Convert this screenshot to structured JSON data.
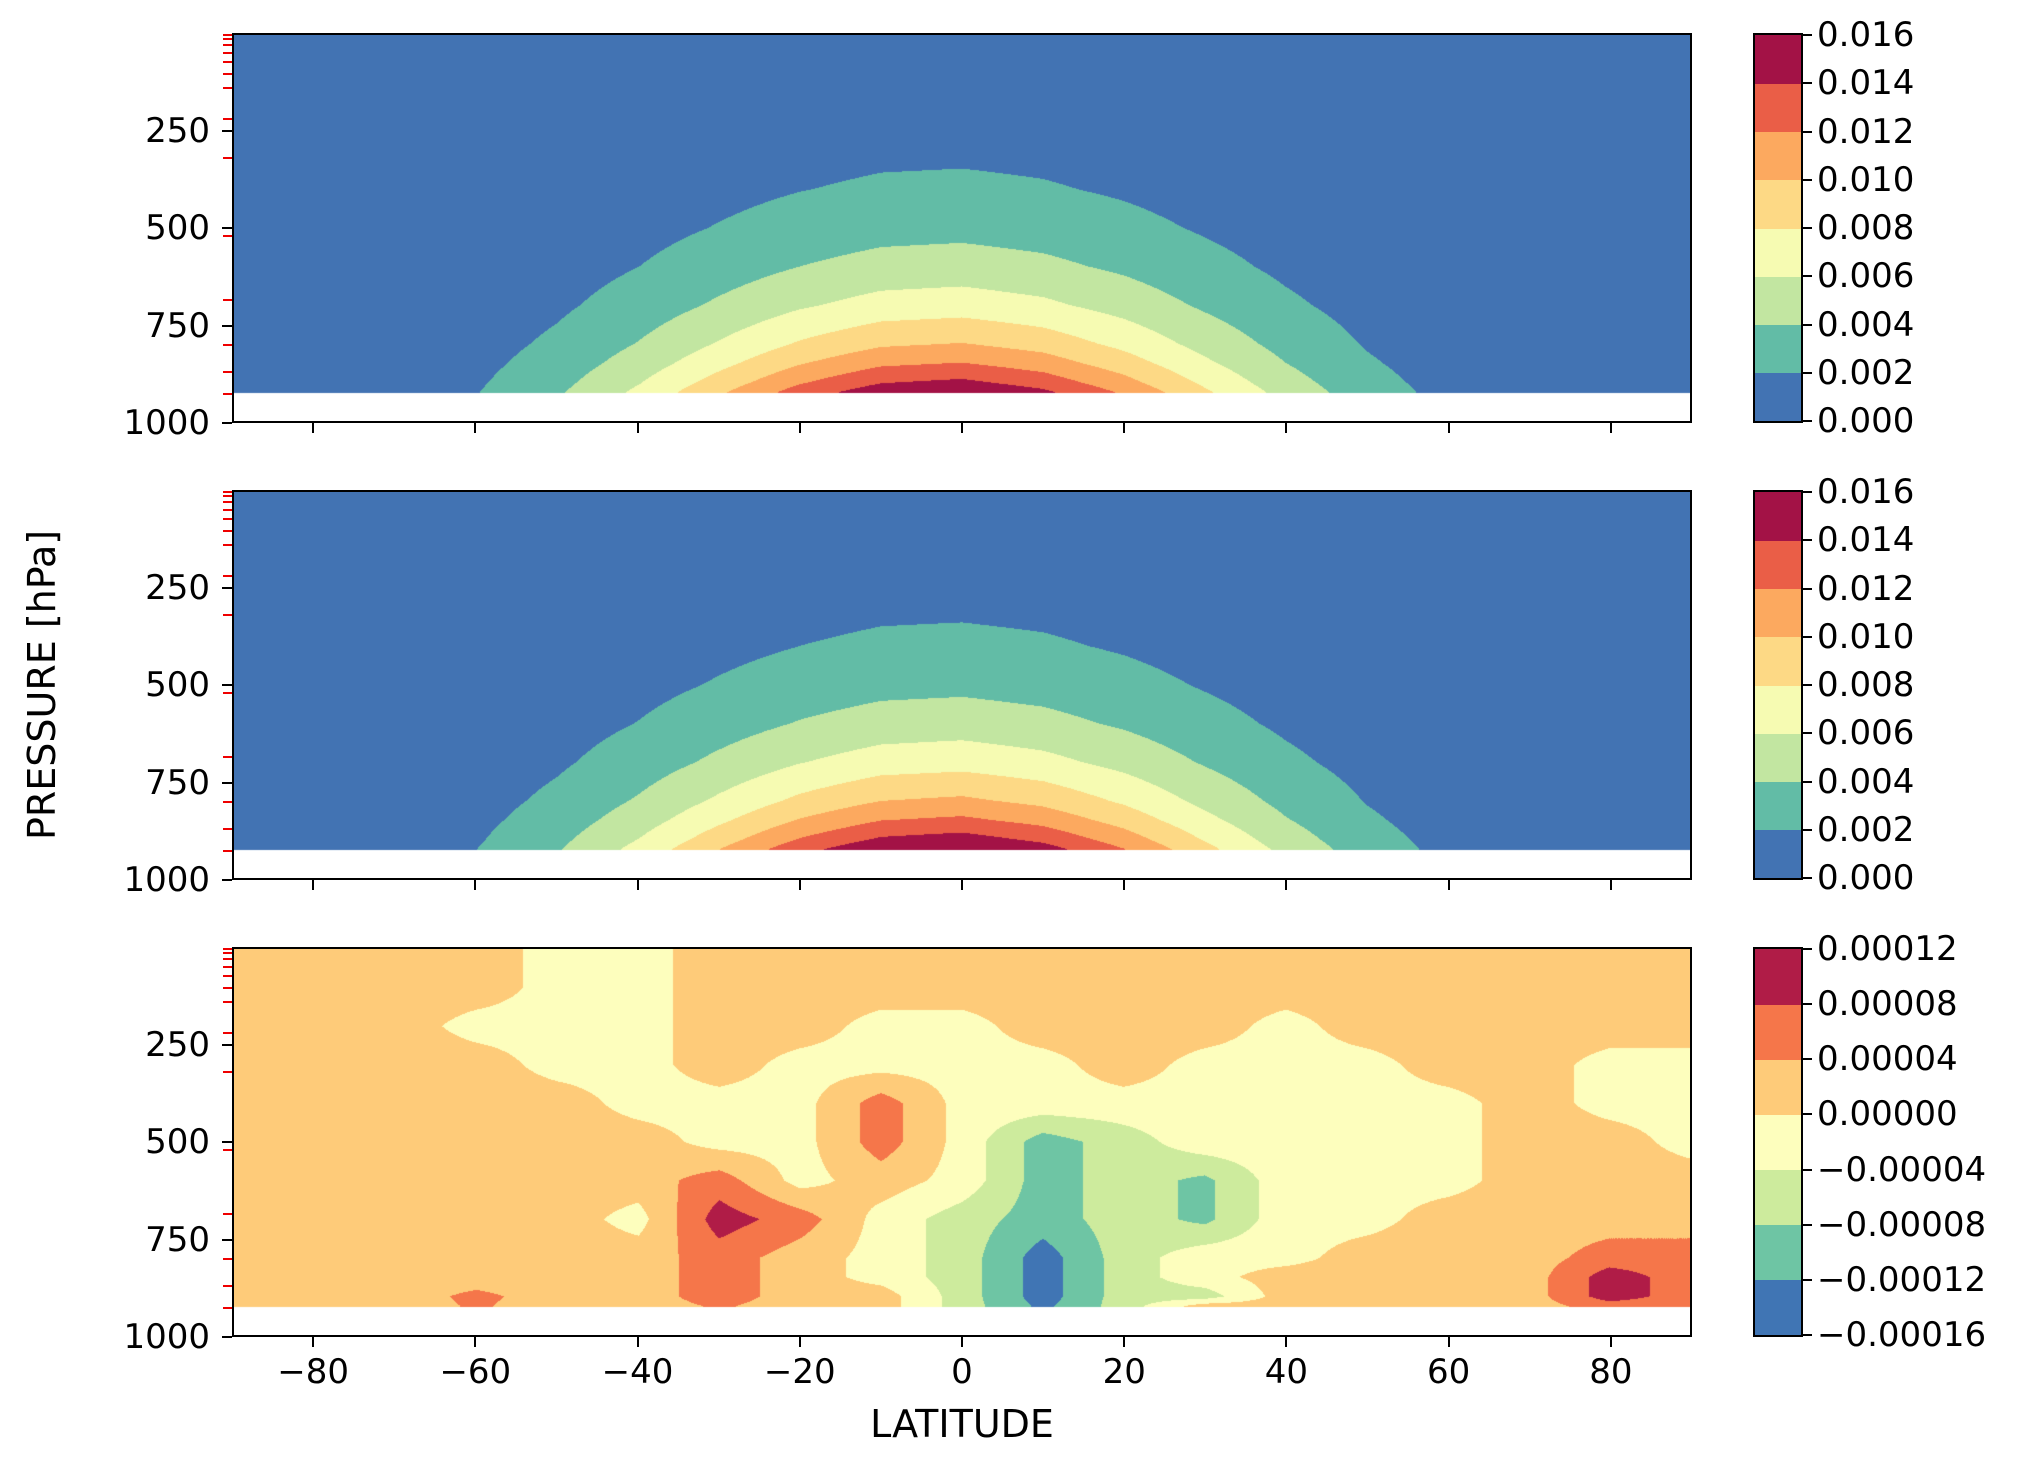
{
  "figure": {
    "ylabel": "PRESSURE [hPa]",
    "xlabel": "LATITUDE",
    "x_tick_labels": [
      "−80",
      "−60",
      "−40",
      "−20",
      "0",
      "20",
      "40",
      "60",
      "80"
    ],
    "x_tick_values": [
      -80,
      -60,
      -40,
      -20,
      0,
      20,
      40,
      60,
      80
    ],
    "y_tick_labels": [
      "250",
      "500",
      "750",
      "1000"
    ],
    "y_tick_values": [
      250,
      500,
      750,
      1000
    ],
    "y_axis_range_hPa": [
      0,
      1000
    ],
    "x_axis_range_deg": [
      -90,
      90
    ],
    "red_minor_tick_pressures": [
      5,
      15,
      30,
      50,
      75,
      105,
      140,
      220,
      320,
      520,
      685,
      800,
      870,
      925
    ],
    "surface_cutoff_hPa": 925
  },
  "chart_data": [
    {
      "type": "heatmap",
      "name": "panel-1-moisture-contour",
      "x_axis": "latitude_deg",
      "y_axis": "pressure_hPa",
      "lats": [
        -90,
        -80,
        -70,
        -60,
        -50,
        -40,
        -30,
        -20,
        -10,
        0,
        10,
        20,
        30,
        40,
        50,
        60,
        70,
        80,
        90
      ],
      "pressures": [
        100,
        200,
        300,
        400,
        500,
        600,
        700,
        800,
        850,
        900,
        925
      ],
      "values": [
        [
          1e-05,
          2e-05,
          5e-05,
          0.0001,
          0.00019,
          0.00033,
          0.0005,
          0.00066,
          0.00078,
          0.00081,
          0.00074,
          0.0006,
          0.00043,
          0.00027,
          0.00015,
          7e-05,
          3e-05,
          1e-05,
          0.0
        ],
        [
          1e-05,
          3e-05,
          6e-05,
          0.00014,
          0.00028,
          0.00047,
          0.00071,
          0.00095,
          0.00112,
          0.00116,
          0.00106,
          0.00086,
          0.00061,
          0.00039,
          0.00022,
          0.00011,
          5e-05,
          2e-05,
          1e-05
        ],
        [
          1e-05,
          4e-05,
          9e-05,
          0.0002,
          0.0004,
          0.00068,
          0.00102,
          0.00136,
          0.00161,
          0.00167,
          0.00152,
          0.00124,
          0.00088,
          0.00056,
          0.00031,
          0.00015,
          7e-05,
          2e-05,
          1e-05
        ],
        [
          2e-05,
          5e-05,
          0.00013,
          0.00029,
          0.00057,
          0.00097,
          0.00147,
          0.00195,
          0.0023,
          0.00239,
          0.00218,
          0.00177,
          0.00126,
          0.00079,
          0.00044,
          0.00022,
          9e-05,
          4e-05,
          1e-05
        ],
        [
          3e-05,
          8e-05,
          0.00019,
          0.00042,
          0.00081,
          0.00139,
          0.0021,
          0.0028,
          0.0033,
          0.00343,
          0.00312,
          0.00254,
          0.00181,
          0.00114,
          0.00063,
          0.00031,
          0.00013,
          5e-05,
          2e-05
        ],
        [
          4e-05,
          0.00011,
          0.00027,
          0.0006,
          0.00116,
          0.00199,
          0.00301,
          0.00401,
          0.00472,
          0.00491,
          0.00447,
          0.00364,
          0.00259,
          0.00163,
          0.00091,
          0.00044,
          0.00019,
          7e-05,
          2e-05
        ],
        [
          6e-05,
          0.00016,
          0.00039,
          0.00086,
          0.00167,
          0.00285,
          0.00431,
          0.00574,
          0.00677,
          0.00703,
          0.00641,
          0.00521,
          0.00371,
          0.00234,
          0.0013,
          0.00064,
          0.00028,
          0.00011,
          4e-05
        ],
        [
          8e-05,
          0.00022,
          0.00056,
          0.00123,
          0.00239,
          0.00409,
          0.00617,
          0.00823,
          0.00969,
          0.01008,
          0.00918,
          0.00746,
          0.00531,
          0.00335,
          0.00186,
          0.00091,
          0.00039,
          0.00015,
          5e-05
        ],
        [
          0.0001,
          0.00027,
          0.00067,
          0.00147,
          0.00286,
          0.00489,
          0.00739,
          0.00985,
          0.01161,
          0.01206,
          0.01099,
          0.00893,
          0.00636,
          0.00401,
          0.00223,
          0.00109,
          0.00047,
          0.00018,
          6e-05
        ],
        [
          0.00011,
          0.00032,
          0.0008,
          0.00176,
          0.00342,
          0.00586,
          0.00885,
          0.01179,
          0.01389,
          0.01444,
          0.01316,
          0.0107,
          0.00761,
          0.0048,
          0.00267,
          0.00131,
          0.00057,
          0.00022,
          7e-05
        ],
        [
          0.00013,
          0.00035,
          0.00088,
          0.00193,
          0.00374,
          0.00641,
          0.00968,
          0.0129,
          0.0152,
          0.0158,
          0.0144,
          0.0117,
          0.00833,
          0.00525,
          0.00292,
          0.00143,
          0.00062,
          0.00024,
          8e-05
        ]
      ],
      "levels": [
        0,
        0.002,
        0.004,
        0.006,
        0.008,
        0.01,
        0.012,
        0.014,
        0.016
      ],
      "band_colors": [
        "#4273b3",
        "#62bca6",
        "#c2e6a1",
        "#f6fbb2",
        "#fdd985",
        "#fca95f",
        "#ea5e47",
        "#a31246"
      ],
      "colorbar_tick_labels": [
        "0.016",
        "0.014",
        "0.012",
        "0.010",
        "0.008",
        "0.006",
        "0.004",
        "0.002",
        "0.000"
      ]
    },
    {
      "type": "heatmap",
      "name": "panel-2-moisture-contour",
      "x_axis": "latitude_deg",
      "y_axis": "pressure_hPa",
      "lats": [
        -90,
        -80,
        -70,
        -60,
        -50,
        -40,
        -30,
        -20,
        -10,
        0,
        10,
        20,
        30,
        40,
        50,
        60,
        70,
        80,
        90
      ],
      "pressures": [
        100,
        200,
        300,
        400,
        500,
        600,
        700,
        800,
        850,
        900,
        925
      ],
      "values": [
        [
          1e-05,
          2e-05,
          5e-05,
          0.0001,
          0.0002,
          0.00034,
          0.00051,
          0.00068,
          0.00081,
          0.00084,
          0.00076,
          0.00062,
          0.00044,
          0.00028,
          0.00015,
          8e-05,
          3e-05,
          1e-05,
          0.0
        ],
        [
          1e-05,
          3e-05,
          7e-05,
          0.00015,
          0.00028,
          0.00049,
          0.00073,
          0.00098,
          0.00115,
          0.0012,
          0.00109,
          0.00089,
          0.00063,
          0.0004,
          0.00022,
          0.00011,
          5e-05,
          2e-05,
          1e-05
        ],
        [
          1e-05,
          4e-05,
          0.0001,
          0.00021,
          0.00041,
          0.0007,
          0.00105,
          0.0014,
          0.00166,
          0.00172,
          0.00157,
          0.00127,
          0.00091,
          0.00057,
          0.00032,
          0.00016,
          7e-05,
          3e-05,
          1e-05
        ],
        [
          2e-05,
          5e-05,
          0.00014,
          0.0003,
          0.00058,
          0.001,
          0.00151,
          0.00201,
          0.00237,
          0.00246,
          0.00225,
          0.00182,
          0.0013,
          0.00082,
          0.00046,
          0.00022,
          0.0001,
          4e-05,
          1e-05
        ],
        [
          3e-05,
          8e-05,
          0.0002,
          0.00043,
          0.00084,
          0.00143,
          0.00216,
          0.00288,
          0.0034,
          0.00353,
          0.00322,
          0.00261,
          0.00186,
          0.00117,
          0.00065,
          0.00032,
          0.00014,
          5e-05,
          2e-05
        ],
        [
          4e-05,
          0.00011,
          0.00028,
          0.00062,
          0.0012,
          0.00205,
          0.0031,
          0.00413,
          0.00486,
          0.00506,
          0.00461,
          0.00374,
          0.00267,
          0.00168,
          0.00093,
          0.00046,
          0.0002,
          8e-05,
          3e-05
        ],
        [
          6e-05,
          0.00016,
          0.0004,
          0.00088,
          0.00172,
          0.00294,
          0.00444,
          0.00592,
          0.00697,
          0.00724,
          0.0066,
          0.00537,
          0.00382,
          0.00241,
          0.00134,
          0.00066,
          0.00028,
          0.00011,
          4e-05
        ],
        [
          8e-05,
          0.00023,
          0.00058,
          0.00127,
          0.00246,
          0.00421,
          0.00636,
          0.00847,
          0.00999,
          0.01038,
          0.00946,
          0.00768,
          0.00547,
          0.00345,
          0.00192,
          0.00094,
          0.00041,
          0.00015,
          5e-05
        ],
        [
          0.0001,
          0.00028,
          0.00069,
          0.00152,
          0.00294,
          0.00504,
          0.00761,
          0.01014,
          0.01195,
          0.01242,
          0.01132,
          0.0092,
          0.00655,
          0.00413,
          0.0023,
          0.00112,
          0.00049,
          0.00019,
          6e-05
        ],
        [
          0.00012,
          0.00033,
          0.00083,
          0.00181,
          0.00352,
          0.00603,
          0.00911,
          0.01215,
          0.01431,
          0.01488,
          0.01356,
          0.01102,
          0.00784,
          0.00494,
          0.00275,
          0.00135,
          0.00058,
          0.00022,
          8e-05
        ],
        [
          0.00013,
          0.00036,
          0.00091,
          0.00199,
          0.00385,
          0.0066,
          0.00997,
          0.01329,
          0.01566,
          0.01627,
          0.01483,
          0.01205,
          0.00858,
          0.00541,
          0.00301,
          0.00147,
          0.00064,
          0.00025,
          8e-05
        ]
      ],
      "levels": [
        0,
        0.002,
        0.004,
        0.006,
        0.008,
        0.01,
        0.012,
        0.014,
        0.016
      ],
      "band_colors": [
        "#4273b3",
        "#62bca6",
        "#c2e6a1",
        "#f6fbb2",
        "#fdd985",
        "#fca95f",
        "#ea5e47",
        "#a31246"
      ],
      "colorbar_tick_labels": [
        "0.016",
        "0.014",
        "0.012",
        "0.010",
        "0.008",
        "0.006",
        "0.004",
        "0.002",
        "0.000"
      ]
    },
    {
      "type": "heatmap",
      "name": "panel-3-difference-contour",
      "x_axis": "latitude_deg",
      "y_axis": "pressure_hPa",
      "lats": [
        -90,
        -80,
        -70,
        -60,
        -50,
        -40,
        -30,
        -20,
        -10,
        0,
        10,
        20,
        30,
        40,
        50,
        60,
        70,
        80,
        90
      ],
      "pressures": [
        100,
        200,
        300,
        400,
        500,
        600,
        700,
        800,
        850,
        900,
        925
      ],
      "values": [
        [
          2e-05,
          2e-05,
          2e-05,
          2e-05,
          -1.5e-05,
          -1.5e-05,
          2e-05,
          2e-05,
          2e-05,
          2e-05,
          2e-05,
          2e-05,
          2e-05,
          2e-05,
          2e-05,
          2e-05,
          2e-05,
          2e-05,
          2e-05
        ],
        [
          2e-05,
          2e-05,
          2e-05,
          -1.5e-05,
          -1.5e-05,
          -1.5e-05,
          2e-05,
          2e-05,
          -1.5e-05,
          -1.5e-05,
          2e-05,
          2e-05,
          2e-05,
          -1.5e-05,
          2e-05,
          2e-05,
          2e-05,
          2e-05,
          2e-05
        ],
        [
          2e-05,
          2e-05,
          2e-05,
          2e-05,
          -1.5e-05,
          -1.5e-05,
          2e-05,
          -1.5e-05,
          -1.5e-05,
          -1.5e-05,
          -1.5e-05,
          2e-05,
          -1.5e-05,
          -1.5e-05,
          -1.5e-05,
          2e-05,
          2e-05,
          -1.5e-05,
          -1.5e-05
        ],
        [
          2e-05,
          2e-05,
          2e-05,
          2e-05,
          2e-05,
          -1.5e-05,
          -1.5e-05,
          -1.5e-05,
          6e-05,
          -1.5e-05,
          -1.5e-05,
          -1.5e-05,
          -1.5e-05,
          -1.5e-05,
          -1.5e-05,
          -1.5e-05,
          2e-05,
          -1.5e-05,
          -1.5e-05
        ],
        [
          2e-05,
          2e-05,
          2e-05,
          2e-05,
          2e-05,
          2e-05,
          -1.5e-05,
          -1.5e-05,
          6e-05,
          -1.5e-05,
          -0.0001,
          -6e-05,
          -1.5e-05,
          -1.5e-05,
          -1.5e-05,
          -1.5e-05,
          2e-05,
          2e-05,
          -1.5e-05
        ],
        [
          2e-05,
          2e-05,
          2e-05,
          2e-05,
          2e-05,
          2e-05,
          6e-05,
          -1.5e-05,
          2e-05,
          -1.5e-05,
          -0.0001,
          -6e-05,
          -9e-05,
          -1.5e-05,
          -1.5e-05,
          -1.5e-05,
          2e-05,
          2e-05,
          2e-05
        ],
        [
          2e-05,
          2e-05,
          2e-05,
          2e-05,
          2e-05,
          -1.5e-05,
          0.0001,
          6e-05,
          -1.5e-05,
          -6e-05,
          -0.0001,
          -6e-05,
          -9e-05,
          -1.5e-05,
          -1.5e-05,
          2e-05,
          2e-05,
          2e-05,
          2e-05
        ],
        [
          2e-05,
          2e-05,
          2e-05,
          2e-05,
          2e-05,
          2e-05,
          6e-05,
          2e-05,
          -1.5e-05,
          -6e-05,
          -0.00014,
          -6e-05,
          -1.5e-05,
          -1.5e-05,
          2e-05,
          2e-05,
          2e-05,
          6e-05,
          6e-05
        ],
        [
          2e-05,
          2e-05,
          2e-05,
          2e-05,
          2e-05,
          2e-05,
          6e-05,
          2e-05,
          -1.5e-05,
          -6e-05,
          -0.00014,
          -6e-05,
          -1.5e-05,
          2e-05,
          2e-05,
          2e-05,
          2e-05,
          0.0001,
          6e-05
        ],
        [
          2e-05,
          2e-05,
          2e-05,
          5e-05,
          2e-05,
          2e-05,
          6e-05,
          2e-05,
          2e-05,
          -6e-05,
          -0.00014,
          -6e-05,
          -6e-05,
          2e-05,
          2e-05,
          2e-05,
          2e-05,
          0.0001,
          6e-05
        ],
        [
          2e-05,
          2e-05,
          2e-05,
          4.5e-05,
          2e-05,
          2e-05,
          4.5e-05,
          2e-05,
          2e-05,
          -6e-05,
          -0.00013,
          -6e-05,
          2e-05,
          2e-05,
          2e-05,
          2e-05,
          2e-05,
          6e-05,
          6e-05
        ]
      ],
      "levels": [
        -0.00016,
        -0.00012,
        -8e-05,
        -4e-05,
        0,
        4e-05,
        8e-05,
        0.00012
      ],
      "band_colors": [
        "#4075b4",
        "#6ec5a4",
        "#cdeb9d",
        "#fdfebd",
        "#fecb79",
        "#f5764a",
        "#b01c47"
      ],
      "colorbar_tick_labels": [
        "0.00012",
        "0.00008",
        "0.00004",
        "0.00000",
        "−0.00004",
        "−0.00008",
        "−0.00012",
        "−0.00016"
      ]
    }
  ]
}
